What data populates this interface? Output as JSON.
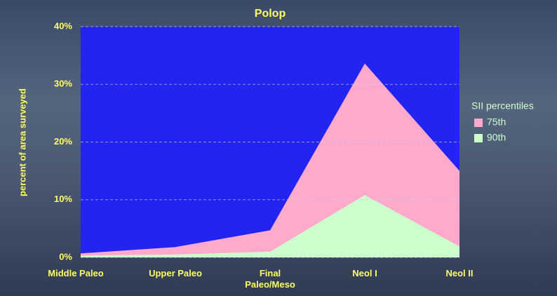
{
  "chart_data": {
    "type": "area",
    "title": "Polop",
    "y_label": "percent of area surveyed",
    "categories": [
      "Middle Paleo",
      "Upper Paleo",
      "Final\nPaleo/Meso",
      "Neol I",
      "Neol II"
    ],
    "series": [
      {
        "name": "75th",
        "color": "#ffaacc",
        "values": [
          0.7,
          1.8,
          4.7,
          33.6,
          15.0
        ]
      },
      {
        "name": "90th",
        "color": "#ccffcc",
        "values": [
          0.3,
          0.5,
          1.0,
          10.8,
          1.9
        ]
      }
    ],
    "legend_title": "SII percentiles",
    "legend": "right",
    "ylim": [
      0,
      40
    ],
    "yticks": [
      {
        "value": 0,
        "label": "0%"
      },
      {
        "value": 10,
        "label": "10%"
      },
      {
        "value": 20,
        "label": "20%"
      },
      {
        "value": 30,
        "label": "30%"
      },
      {
        "value": 40,
        "label": "40%"
      }
    ],
    "grid": true,
    "plot_color": "#2424f0"
  }
}
